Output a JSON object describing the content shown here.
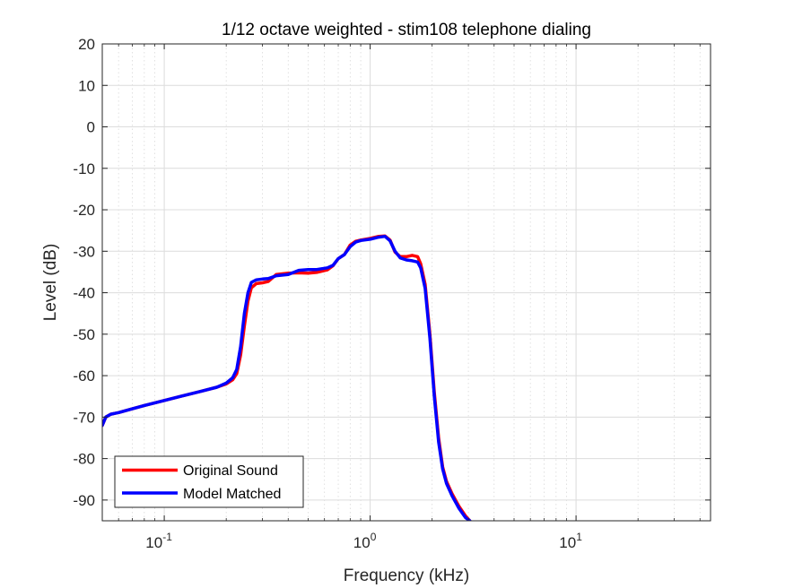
{
  "chart_data": {
    "type": "line",
    "title": "1/12 octave weighted - stim108 telephone dialing",
    "xlabel": "Frequency (kHz)",
    "ylabel": "Level (dB)",
    "xscale": "log",
    "xlim": [
      0.05,
      45
    ],
    "ylim": [
      -95,
      20
    ],
    "yticks": [
      20,
      10,
      0,
      -10,
      -20,
      -30,
      -40,
      -50,
      -60,
      -70,
      -80,
      -90
    ],
    "xticks": [
      {
        "base": "10",
        "exp": "-1",
        "value": 0.1
      },
      {
        "base": "10",
        "exp": "0",
        "value": 1
      },
      {
        "base": "10",
        "exp": "1",
        "value": 10
      }
    ],
    "grid": true,
    "minor_grid": true,
    "legend_position": "bottom-left",
    "series": [
      {
        "name": "Original Sound",
        "color": "#ff0000",
        "points": [
          [
            0.05,
            -72.0
          ],
          [
            0.052,
            -70.0
          ],
          [
            0.055,
            -69.3
          ],
          [
            0.06,
            -68.9
          ],
          [
            0.07,
            -68.0
          ],
          [
            0.08,
            -67.2
          ],
          [
            0.1,
            -66.0
          ],
          [
            0.12,
            -65.0
          ],
          [
            0.15,
            -63.8
          ],
          [
            0.18,
            -62.8
          ],
          [
            0.2,
            -62.0
          ],
          [
            0.215,
            -61.0
          ],
          [
            0.225,
            -59.5
          ],
          [
            0.235,
            -55.0
          ],
          [
            0.245,
            -48.0
          ],
          [
            0.255,
            -42.0
          ],
          [
            0.265,
            -38.8
          ],
          [
            0.28,
            -37.8
          ],
          [
            0.3,
            -37.6
          ],
          [
            0.32,
            -37.3
          ],
          [
            0.35,
            -35.6
          ],
          [
            0.4,
            -35.3
          ],
          [
            0.45,
            -35.2
          ],
          [
            0.5,
            -35.3
          ],
          [
            0.55,
            -35.1
          ],
          [
            0.62,
            -34.5
          ],
          [
            0.66,
            -33.5
          ],
          [
            0.7,
            -31.8
          ],
          [
            0.75,
            -30.8
          ],
          [
            0.8,
            -28.5
          ],
          [
            0.85,
            -27.6
          ],
          [
            0.9,
            -27.3
          ],
          [
            1.0,
            -26.9
          ],
          [
            1.1,
            -26.4
          ],
          [
            1.18,
            -26.3
          ],
          [
            1.25,
            -27.3
          ],
          [
            1.32,
            -30.2
          ],
          [
            1.4,
            -31.3
          ],
          [
            1.5,
            -31.3
          ],
          [
            1.6,
            -31.0
          ],
          [
            1.7,
            -31.3
          ],
          [
            1.76,
            -33.0
          ],
          [
            1.85,
            -38.0
          ],
          [
            1.95,
            -50.0
          ],
          [
            2.05,
            -64.0
          ],
          [
            2.15,
            -75.0
          ],
          [
            2.25,
            -82.0
          ],
          [
            2.35,
            -85.5
          ],
          [
            2.5,
            -88.5
          ],
          [
            2.7,
            -91.5
          ],
          [
            2.9,
            -93.8
          ],
          [
            3.05,
            -95.0
          ]
        ]
      },
      {
        "name": "Model Matched",
        "color": "#0000ff",
        "points": [
          [
            0.05,
            -72.0
          ],
          [
            0.052,
            -70.0
          ],
          [
            0.055,
            -69.3
          ],
          [
            0.06,
            -68.9
          ],
          [
            0.07,
            -68.0
          ],
          [
            0.08,
            -67.2
          ],
          [
            0.1,
            -66.0
          ],
          [
            0.12,
            -65.0
          ],
          [
            0.15,
            -63.8
          ],
          [
            0.18,
            -62.8
          ],
          [
            0.2,
            -61.8
          ],
          [
            0.215,
            -60.5
          ],
          [
            0.225,
            -58.5
          ],
          [
            0.235,
            -53.0
          ],
          [
            0.245,
            -45.0
          ],
          [
            0.255,
            -40.0
          ],
          [
            0.265,
            -37.5
          ],
          [
            0.28,
            -36.9
          ],
          [
            0.3,
            -36.7
          ],
          [
            0.32,
            -36.6
          ],
          [
            0.35,
            -35.9
          ],
          [
            0.4,
            -35.6
          ],
          [
            0.45,
            -34.6
          ],
          [
            0.5,
            -34.4
          ],
          [
            0.55,
            -34.4
          ],
          [
            0.62,
            -34.0
          ],
          [
            0.66,
            -33.4
          ],
          [
            0.7,
            -31.8
          ],
          [
            0.75,
            -30.8
          ],
          [
            0.8,
            -28.9
          ],
          [
            0.85,
            -27.8
          ],
          [
            0.9,
            -27.4
          ],
          [
            1.0,
            -27.1
          ],
          [
            1.1,
            -26.6
          ],
          [
            1.18,
            -26.4
          ],
          [
            1.25,
            -27.5
          ],
          [
            1.32,
            -30.0
          ],
          [
            1.4,
            -31.6
          ],
          [
            1.5,
            -32.1
          ],
          [
            1.6,
            -32.3
          ],
          [
            1.7,
            -32.6
          ],
          [
            1.76,
            -34.0
          ],
          [
            1.85,
            -39.0
          ],
          [
            1.95,
            -51.0
          ],
          [
            2.05,
            -65.0
          ],
          [
            2.15,
            -76.0
          ],
          [
            2.25,
            -82.5
          ],
          [
            2.35,
            -86.0
          ],
          [
            2.5,
            -89.0
          ],
          [
            2.7,
            -92.0
          ],
          [
            2.9,
            -94.2
          ],
          [
            3.05,
            -95.0
          ]
        ]
      }
    ]
  }
}
